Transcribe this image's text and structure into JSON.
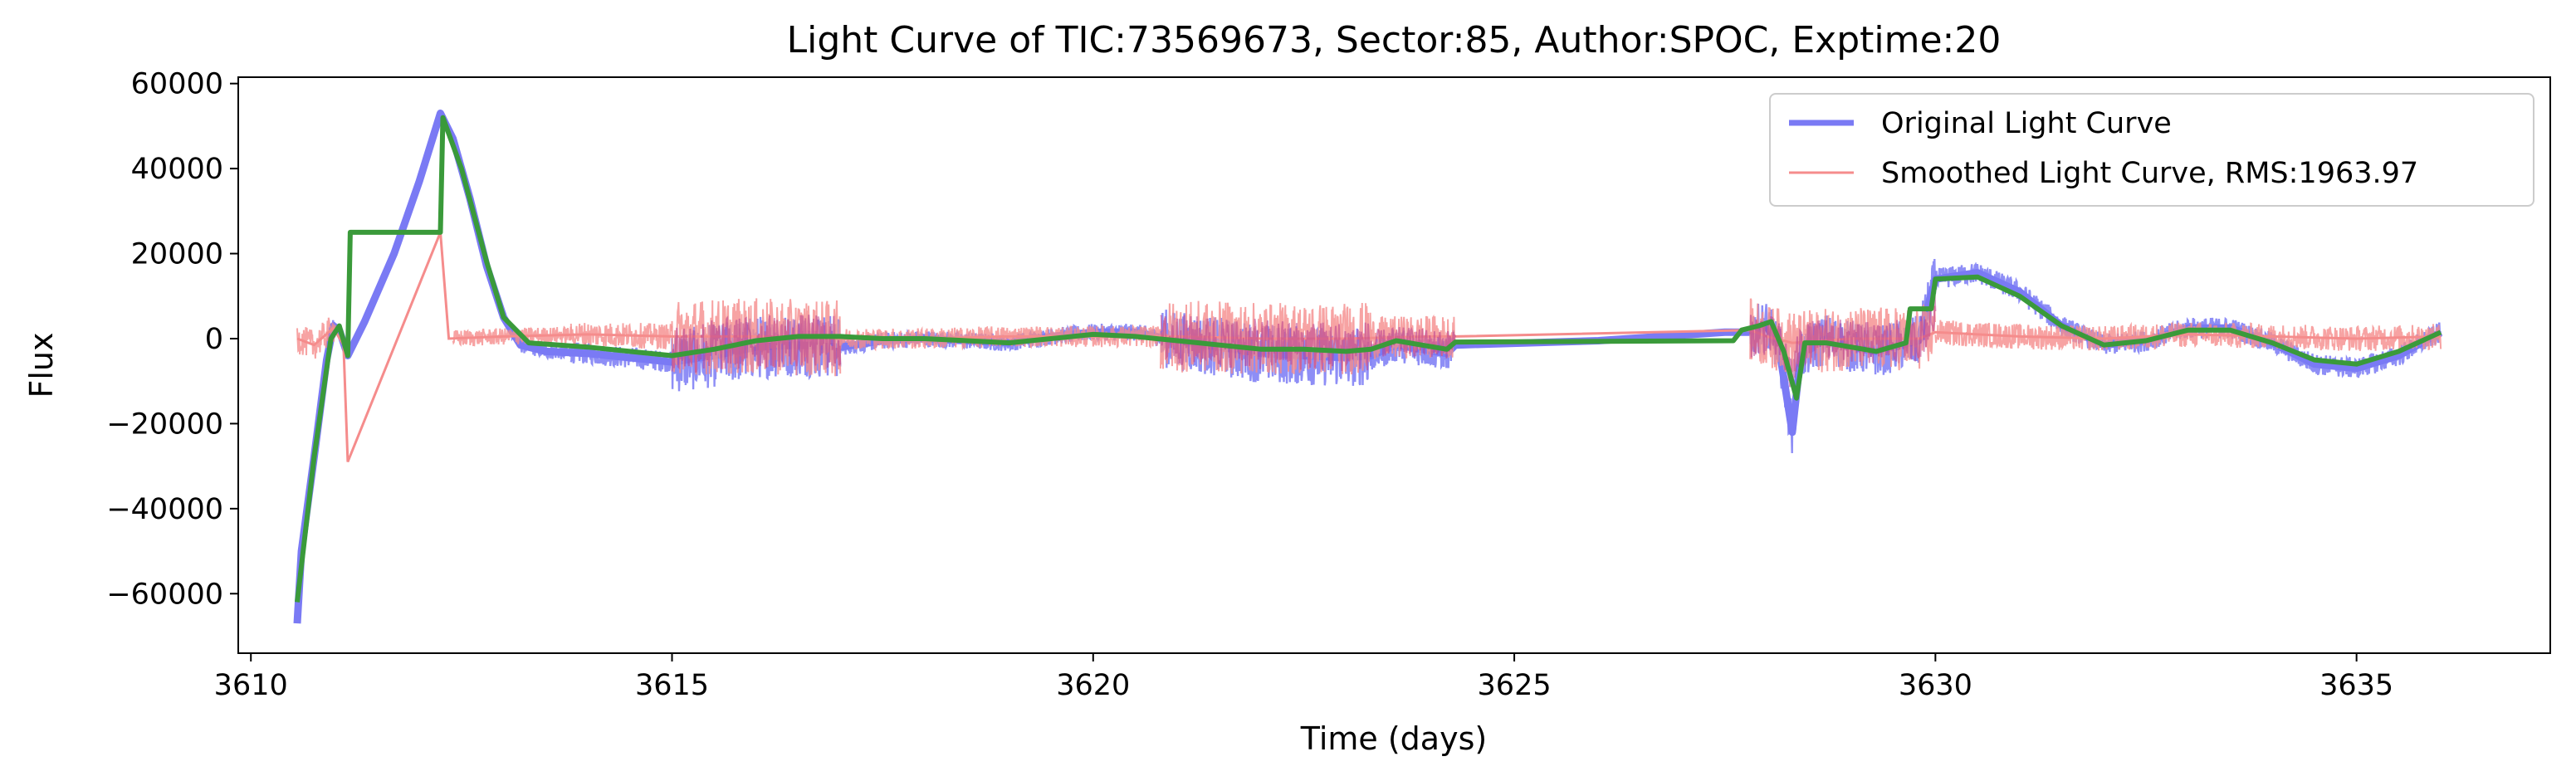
{
  "chart_data": {
    "type": "line",
    "title": "Light Curve of TIC:73569673, Sector:85, Author:SPOC, Exptime:20",
    "xlabel": "Time (days)",
    "ylabel": "Flux",
    "xlim": [
      3609.85,
      3637.3
    ],
    "ylim": [
      -74000,
      61500
    ],
    "x_ticks": [
      3610,
      3615,
      3620,
      3625,
      3630,
      3635
    ],
    "x_tick_labels": [
      "3610",
      "3615",
      "3620",
      "3625",
      "3630",
      "3635"
    ],
    "y_ticks": [
      -60000,
      -40000,
      -20000,
      0,
      20000,
      40000,
      60000
    ],
    "y_tick_labels": [
      "−60000",
      "−40000",
      "−20000",
      "0",
      "20000",
      "40000",
      "60000"
    ],
    "grid": false,
    "legend_position": "top-right",
    "colors": {
      "original": "#7a7af4",
      "smoothed": "#f58c8c",
      "overlap": "#b94090",
      "trend": "#3a9a3a"
    },
    "series": [
      {
        "name": "Original Light Curve",
        "style": "thick-line",
        "points": [
          [
            3610.55,
            -67000
          ],
          [
            3610.6,
            -50000
          ],
          [
            3610.75,
            -28000
          ],
          [
            3610.9,
            -5000
          ],
          [
            3610.98,
            3000
          ],
          [
            3611.05,
            2000
          ],
          [
            3611.15,
            -4000
          ],
          [
            3611.35,
            4000
          ],
          [
            3611.7,
            20000
          ],
          [
            3612.0,
            37000
          ],
          [
            3612.25,
            53000
          ],
          [
            3612.4,
            47000
          ],
          [
            3612.6,
            33000
          ],
          [
            3612.8,
            17000
          ],
          [
            3613.0,
            5000
          ],
          [
            3613.2,
            -1500
          ],
          [
            3613.5,
            -3000
          ],
          [
            3614.0,
            -3500
          ],
          [
            3614.5,
            -4500
          ],
          [
            3615.0,
            -5500
          ],
          [
            3615.5,
            -4000
          ],
          [
            3616.0,
            -2000
          ],
          [
            3616.5,
            -1500
          ],
          [
            3617.0,
            -2000
          ],
          [
            3617.5,
            -500
          ],
          [
            3618.0,
            0
          ],
          [
            3618.5,
            -500
          ],
          [
            3619.0,
            -1000
          ],
          [
            3619.5,
            500
          ],
          [
            3620.0,
            1500
          ],
          [
            3620.5,
            1500
          ],
          [
            3621.0,
            -500
          ],
          [
            3621.5,
            -2000
          ],
          [
            3622.0,
            -3500
          ],
          [
            3622.5,
            -4000
          ],
          [
            3623.0,
            -4500
          ],
          [
            3623.3,
            -4000
          ],
          [
            3623.6,
            -1500
          ],
          [
            3623.9,
            -2500
          ],
          [
            3624.2,
            -3500
          ],
          [
            3624.3,
            -1500
          ],
          [
            3626.0,
            -500
          ],
          [
            3627.5,
            1500
          ],
          [
            3627.8,
            1500
          ],
          [
            3628.0,
            3000
          ],
          [
            3628.15,
            -3000
          ],
          [
            3628.3,
            -22000
          ],
          [
            3628.4,
            -4000
          ],
          [
            3628.7,
            0
          ],
          [
            3629.0,
            -2000
          ],
          [
            3629.3,
            -3000
          ],
          [
            3629.6,
            -1500
          ],
          [
            3629.8,
            -500
          ],
          [
            3630.0,
            14000
          ],
          [
            3630.5,
            15500
          ],
          [
            3631.0,
            11000
          ],
          [
            3631.5,
            3000
          ],
          [
            3632.0,
            -1500
          ],
          [
            3632.5,
            -500
          ],
          [
            3633.0,
            2500
          ],
          [
            3633.5,
            2500
          ],
          [
            3634.0,
            -1000
          ],
          [
            3634.5,
            -6000
          ],
          [
            3635.0,
            -7000
          ],
          [
            3635.5,
            -4000
          ],
          [
            3636.0,
            1500
          ]
        ]
      },
      {
        "name": "Smoothed Light Curve, RMS:1963.97",
        "style": "thin-line",
        "points": [
          [
            3610.55,
            0
          ],
          [
            3610.75,
            -1500
          ],
          [
            3610.98,
            2500
          ],
          [
            3611.1,
            -1500
          ],
          [
            3611.15,
            -29000
          ],
          [
            3612.25,
            25000
          ],
          [
            3612.35,
            0
          ],
          [
            3613.0,
            500
          ],
          [
            3614.0,
            1000
          ],
          [
            3615.0,
            500
          ],
          [
            3616.0,
            500
          ],
          [
            3617.0,
            0
          ],
          [
            3618.0,
            0
          ],
          [
            3619.0,
            500
          ],
          [
            3620.0,
            500
          ],
          [
            3621.0,
            500
          ],
          [
            3622.0,
            0
          ],
          [
            3623.0,
            0
          ],
          [
            3624.0,
            500
          ],
          [
            3624.3,
            500
          ],
          [
            3627.8,
            2000
          ],
          [
            3628.0,
            500
          ],
          [
            3628.3,
            -1000
          ],
          [
            3629.0,
            0
          ],
          [
            3629.8,
            0
          ],
          [
            3630.0,
            1500
          ],
          [
            3631.0,
            500
          ],
          [
            3632.0,
            0
          ],
          [
            3633.0,
            1000
          ],
          [
            3634.0,
            500
          ],
          [
            3635.0,
            0
          ],
          [
            3636.0,
            500
          ]
        ]
      }
    ],
    "trend": {
      "points": [
        [
          3610.55,
          -62000
        ],
        [
          3610.75,
          -28000
        ],
        [
          3610.95,
          0
        ],
        [
          3611.05,
          3000
        ],
        [
          3611.15,
          -4000
        ],
        [
          3611.18,
          25000
        ],
        [
          3612.25,
          25000
        ],
        [
          3612.28,
          52000
        ],
        [
          3612.5,
          40000
        ],
        [
          3612.8,
          18000
        ],
        [
          3613.0,
          5000
        ],
        [
          3613.3,
          -1000
        ],
        [
          3614.0,
          -2000
        ],
        [
          3614.5,
          -3000
        ],
        [
          3615.0,
          -4000
        ],
        [
          3615.5,
          -2500
        ],
        [
          3616.0,
          -500
        ],
        [
          3616.5,
          500
        ],
        [
          3617.0,
          500
        ],
        [
          3617.5,
          0
        ],
        [
          3618.0,
          0
        ],
        [
          3618.5,
          -500
        ],
        [
          3619.0,
          -1000
        ],
        [
          3619.5,
          0
        ],
        [
          3620.0,
          1000
        ],
        [
          3620.5,
          500
        ],
        [
          3621.0,
          -500
        ],
        [
          3621.5,
          -1500
        ],
        [
          3622.0,
          -2500
        ],
        [
          3622.5,
          -2500
        ],
        [
          3623.0,
          -3000
        ],
        [
          3623.3,
          -2500
        ],
        [
          3623.6,
          -500
        ],
        [
          3623.9,
          -1500
        ],
        [
          3624.2,
          -2500
        ],
        [
          3624.3,
          -800
        ],
        [
          3627.6,
          -500
        ],
        [
          3627.7,
          2000
        ],
        [
          3627.9,
          3000
        ],
        [
          3628.05,
          4000
        ],
        [
          3628.2,
          -3000
        ],
        [
          3628.35,
          -14000
        ],
        [
          3628.45,
          -1000
        ],
        [
          3628.7,
          -1000
        ],
        [
          3629.0,
          -2000
        ],
        [
          3629.3,
          -3000
        ],
        [
          3629.65,
          -1000
        ],
        [
          3629.7,
          7000
        ],
        [
          3629.95,
          7000
        ],
        [
          3630.0,
          14000
        ],
        [
          3630.5,
          14500
        ],
        [
          3631.0,
          10000
        ],
        [
          3631.5,
          3000
        ],
        [
          3632.0,
          -1500
        ],
        [
          3632.5,
          -500
        ],
        [
          3633.0,
          2000
        ],
        [
          3633.5,
          2000
        ],
        [
          3634.0,
          -1000
        ],
        [
          3634.5,
          -5000
        ],
        [
          3635.0,
          -6000
        ],
        [
          3635.5,
          -3000
        ],
        [
          3636.0,
          1500
        ]
      ]
    },
    "noise_segments": [
      {
        "x": [
          3610.55,
          3611.0
        ],
        "smoothed_amp": 3500,
        "original_amp": 2500
      },
      {
        "x": [
          3612.4,
          3613.8
        ],
        "smoothed_amp": 2000,
        "original_amp": 1800
      },
      {
        "x": [
          3613.8,
          3615.0
        ],
        "smoothed_amp": 3000,
        "original_amp": 2500
      },
      {
        "x": [
          3615.0,
          3617.0
        ],
        "smoothed_amp": 9000,
        "original_amp": 7500
      },
      {
        "x": [
          3617.0,
          3620.8
        ],
        "smoothed_amp": 2500,
        "original_amp": 2000
      },
      {
        "x": [
          3620.8,
          3623.3
        ],
        "smoothed_amp": 8500,
        "original_amp": 7000
      },
      {
        "x": [
          3623.3,
          3624.3
        ],
        "smoothed_amp": 5000,
        "original_amp": 4000
      },
      {
        "x": [
          3627.8,
          3630.0
        ],
        "smoothed_amp": 7500,
        "original_amp": 6000
      },
      {
        "x": [
          3630.0,
          3636.0
        ],
        "smoothed_amp": 3000,
        "original_amp": 2500
      }
    ]
  }
}
